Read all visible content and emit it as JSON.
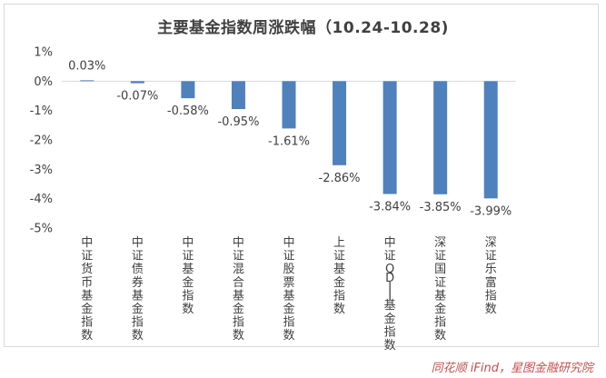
{
  "chart_data": {
    "type": "bar",
    "title": "主要基金指数周涨跌幅（10.24-10.28)",
    "categories": [
      "中证货币基金指数",
      "中证债券基金指数",
      "中证基金指数",
      "中证混合基金指数",
      "中证股票基金指数",
      "上证基金指数",
      "中证QDII基金指数",
      "深证国证基金指数",
      "深证乐富指数"
    ],
    "values": [
      0.03,
      -0.07,
      -0.58,
      -0.95,
      -1.61,
      -2.86,
      -3.84,
      -3.85,
      -3.99
    ],
    "data_labels": [
      "0.03%",
      "-0.07%",
      "-0.58%",
      "-0.95%",
      "-1.61%",
      "-2.86%",
      "-3.84%",
      "-3.85%",
      "-3.99%"
    ],
    "ylim": [
      -5,
      1
    ],
    "yticks": [
      1,
      0,
      -1,
      -2,
      -3,
      -4,
      -5
    ],
    "ytick_labels": [
      "1%",
      "0%",
      "-1%",
      "-2%",
      "-3%",
      "-4%",
      "-5%"
    ],
    "xlabel": "",
    "ylabel": "",
    "grid": false,
    "bar_color": "#4f81bd"
  },
  "source": "同花顺 iFind，星图金融研究院"
}
